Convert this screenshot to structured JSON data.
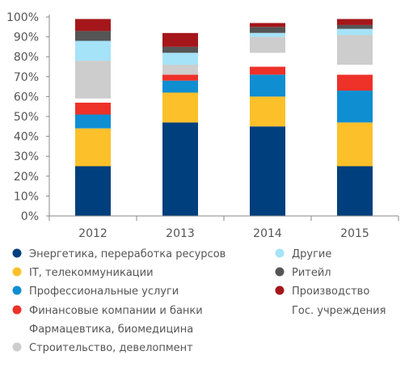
{
  "chart_data": {
    "type": "bar",
    "stacked": true,
    "categories": [
      "2012",
      "2013",
      "2014",
      "2015"
    ],
    "ylim": [
      0,
      100
    ],
    "yticks": [
      "0%",
      "10%",
      "20%",
      "30%",
      "40%",
      "50%",
      "60%",
      "70%",
      "80%",
      "90%",
      "100%"
    ],
    "grid": false,
    "legend_position": "bottom",
    "series": [
      {
        "name": "Энергетика, переработка ресурсов",
        "color": "#003f7d",
        "values": [
          25,
          47,
          45,
          25
        ]
      },
      {
        "name": "IT, телекоммуникации",
        "color": "#fcc02a",
        "values": [
          19,
          15,
          15,
          22
        ]
      },
      {
        "name": "Профессиональные услуги",
        "color": "#0f8ed2",
        "values": [
          7,
          6,
          11,
          16
        ]
      },
      {
        "name": "Финансовые компании и банки",
        "color": "#ee3129",
        "values": [
          6,
          3,
          4,
          8
        ]
      },
      {
        "name": "Фармацевтика, биомедицина",
        "color": "#ffffff",
        "values": [
          2,
          0,
          7,
          5
        ]
      },
      {
        "name": "Строительство, девелопмент",
        "color": "#cdcdcd",
        "values": [
          19,
          5,
          8,
          15
        ]
      },
      {
        "name": "Другие",
        "color": "#a5e3f9",
        "values": [
          10,
          6,
          2,
          3
        ]
      },
      {
        "name": "Ритейл",
        "color": "#555555",
        "values": [
          5,
          3,
          3,
          2
        ]
      },
      {
        "name": "Производство",
        "color": "#a4161a",
        "values": [
          6,
          7,
          2,
          3
        ]
      },
      {
        "name": "Гос. учреждения",
        "color": "#ffffff",
        "values": [
          1,
          8,
          3,
          1
        ]
      }
    ]
  },
  "legend_markers": [
    {
      "series": 0,
      "color": "#003f7d"
    },
    {
      "series": 1,
      "color": "#fcc02a"
    },
    {
      "series": 2,
      "color": "#0f8ed2"
    },
    {
      "series": 3,
      "color": "#ee3129"
    },
    {
      "series": 5,
      "color": "#cdcdcd"
    },
    {
      "series": 6,
      "color": "#a5e3f9"
    },
    {
      "series": 7,
      "color": "#555555"
    },
    {
      "series": 8,
      "color": "#a4161a"
    }
  ]
}
